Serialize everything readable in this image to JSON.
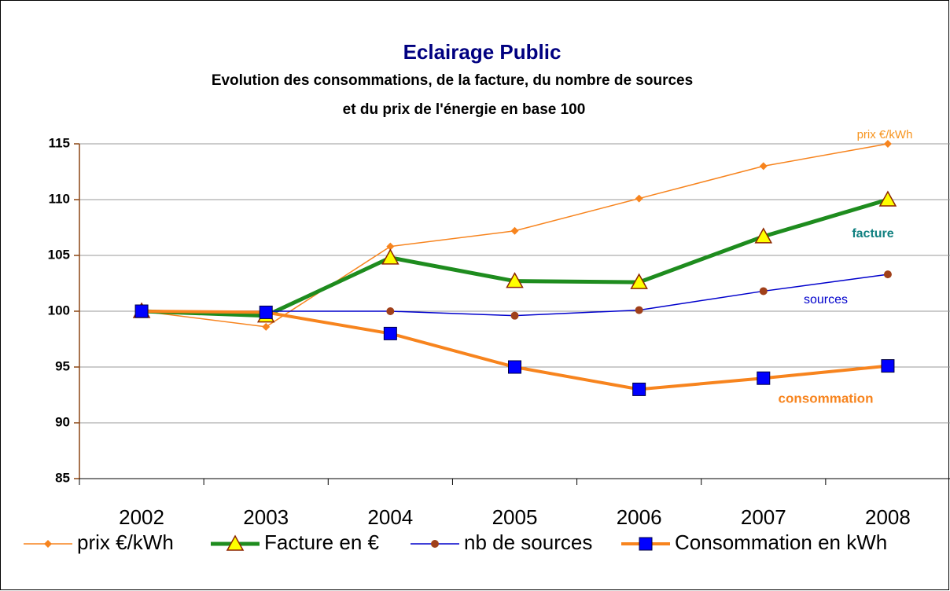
{
  "chart_data": {
    "type": "line",
    "title": "Eclairage Public",
    "subtitle": [
      "Evolution des consommations, de la facture, du nombre de sources",
      "et du prix de l'énergie en base 100"
    ],
    "categories": [
      "2002",
      "2003",
      "2004",
      "2005",
      "2006",
      "2007",
      "2008"
    ],
    "series": [
      {
        "name": "prix €/kWh",
        "color": "#f7841e",
        "marker": "diamond",
        "marker_color": "#f7841e",
        "values": [
          100,
          98.6,
          105.8,
          107.2,
          110.1,
          113.0,
          115.0
        ]
      },
      {
        "name": "Facture en €",
        "color": "#1e8c1e",
        "marker": "triangle",
        "marker_color": "#ffff00",
        "values": [
          100,
          99.6,
          104.8,
          102.7,
          102.6,
          106.7,
          110.0
        ]
      },
      {
        "name": "nb de sources",
        "color": "#0000cc",
        "marker": "circle",
        "marker_color": "#a0401a",
        "values": [
          100,
          100,
          100,
          99.6,
          100.1,
          101.8,
          103.3
        ]
      },
      {
        "name": "Consommation en kWh",
        "color": "#f7841e",
        "marker": "square",
        "marker_color": "#0000ff",
        "values": [
          100,
          99.9,
          98.0,
          95.0,
          93.0,
          94.0,
          95.1
        ]
      }
    ],
    "annotations": [
      {
        "text": "prix €/kWh",
        "color": "#f7941e"
      },
      {
        "text": "facture",
        "color": "#108080"
      },
      {
        "text": "sources",
        "color": "#0000cc"
      },
      {
        "text": "consommation",
        "color": "#f7841e"
      }
    ],
    "ylim": [
      85,
      115
    ],
    "yticks": [
      85,
      90,
      95,
      100,
      105,
      110,
      115
    ],
    "grid": true,
    "legend": "bottom"
  }
}
